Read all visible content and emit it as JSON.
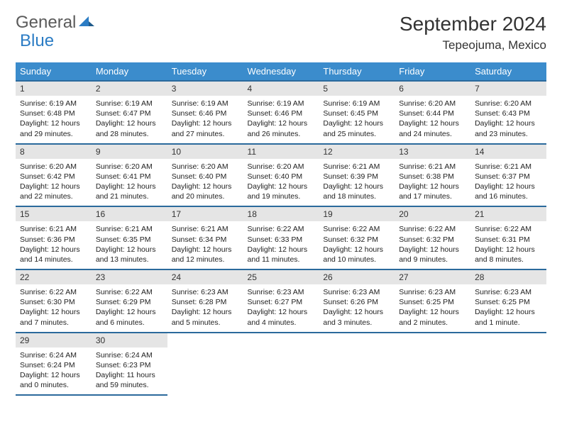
{
  "logo": {
    "text1": "General",
    "text2": "Blue"
  },
  "title": "September 2024",
  "location": "Tepeojuma, Mexico",
  "colors": {
    "header_bg": "#3b8ccc",
    "header_text": "#ffffff",
    "row_border": "#2b6a9c",
    "daynum_bg": "#e5e5e5",
    "logo_gray": "#5a5a5a",
    "logo_blue": "#2b7cc4"
  },
  "day_names": [
    "Sunday",
    "Monday",
    "Tuesday",
    "Wednesday",
    "Thursday",
    "Friday",
    "Saturday"
  ],
  "weeks": [
    [
      {
        "n": "1",
        "sunrise": "6:19 AM",
        "sunset": "6:48 PM",
        "dl1": "12 hours",
        "dl2": "and 29 minutes."
      },
      {
        "n": "2",
        "sunrise": "6:19 AM",
        "sunset": "6:47 PM",
        "dl1": "12 hours",
        "dl2": "and 28 minutes."
      },
      {
        "n": "3",
        "sunrise": "6:19 AM",
        "sunset": "6:46 PM",
        "dl1": "12 hours",
        "dl2": "and 27 minutes."
      },
      {
        "n": "4",
        "sunrise": "6:19 AM",
        "sunset": "6:46 PM",
        "dl1": "12 hours",
        "dl2": "and 26 minutes."
      },
      {
        "n": "5",
        "sunrise": "6:19 AM",
        "sunset": "6:45 PM",
        "dl1": "12 hours",
        "dl2": "and 25 minutes."
      },
      {
        "n": "6",
        "sunrise": "6:20 AM",
        "sunset": "6:44 PM",
        "dl1": "12 hours",
        "dl2": "and 24 minutes."
      },
      {
        "n": "7",
        "sunrise": "6:20 AM",
        "sunset": "6:43 PM",
        "dl1": "12 hours",
        "dl2": "and 23 minutes."
      }
    ],
    [
      {
        "n": "8",
        "sunrise": "6:20 AM",
        "sunset": "6:42 PM",
        "dl1": "12 hours",
        "dl2": "and 22 minutes."
      },
      {
        "n": "9",
        "sunrise": "6:20 AM",
        "sunset": "6:41 PM",
        "dl1": "12 hours",
        "dl2": "and 21 minutes."
      },
      {
        "n": "10",
        "sunrise": "6:20 AM",
        "sunset": "6:40 PM",
        "dl1": "12 hours",
        "dl2": "and 20 minutes."
      },
      {
        "n": "11",
        "sunrise": "6:20 AM",
        "sunset": "6:40 PM",
        "dl1": "12 hours",
        "dl2": "and 19 minutes."
      },
      {
        "n": "12",
        "sunrise": "6:21 AM",
        "sunset": "6:39 PM",
        "dl1": "12 hours",
        "dl2": "and 18 minutes."
      },
      {
        "n": "13",
        "sunrise": "6:21 AM",
        "sunset": "6:38 PM",
        "dl1": "12 hours",
        "dl2": "and 17 minutes."
      },
      {
        "n": "14",
        "sunrise": "6:21 AM",
        "sunset": "6:37 PM",
        "dl1": "12 hours",
        "dl2": "and 16 minutes."
      }
    ],
    [
      {
        "n": "15",
        "sunrise": "6:21 AM",
        "sunset": "6:36 PM",
        "dl1": "12 hours",
        "dl2": "and 14 minutes."
      },
      {
        "n": "16",
        "sunrise": "6:21 AM",
        "sunset": "6:35 PM",
        "dl1": "12 hours",
        "dl2": "and 13 minutes."
      },
      {
        "n": "17",
        "sunrise": "6:21 AM",
        "sunset": "6:34 PM",
        "dl1": "12 hours",
        "dl2": "and 12 minutes."
      },
      {
        "n": "18",
        "sunrise": "6:22 AM",
        "sunset": "6:33 PM",
        "dl1": "12 hours",
        "dl2": "and 11 minutes."
      },
      {
        "n": "19",
        "sunrise": "6:22 AM",
        "sunset": "6:32 PM",
        "dl1": "12 hours",
        "dl2": "and 10 minutes."
      },
      {
        "n": "20",
        "sunrise": "6:22 AM",
        "sunset": "6:32 PM",
        "dl1": "12 hours",
        "dl2": "and 9 minutes."
      },
      {
        "n": "21",
        "sunrise": "6:22 AM",
        "sunset": "6:31 PM",
        "dl1": "12 hours",
        "dl2": "and 8 minutes."
      }
    ],
    [
      {
        "n": "22",
        "sunrise": "6:22 AM",
        "sunset": "6:30 PM",
        "dl1": "12 hours",
        "dl2": "and 7 minutes."
      },
      {
        "n": "23",
        "sunrise": "6:22 AM",
        "sunset": "6:29 PM",
        "dl1": "12 hours",
        "dl2": "and 6 minutes."
      },
      {
        "n": "24",
        "sunrise": "6:23 AM",
        "sunset": "6:28 PM",
        "dl1": "12 hours",
        "dl2": "and 5 minutes."
      },
      {
        "n": "25",
        "sunrise": "6:23 AM",
        "sunset": "6:27 PM",
        "dl1": "12 hours",
        "dl2": "and 4 minutes."
      },
      {
        "n": "26",
        "sunrise": "6:23 AM",
        "sunset": "6:26 PM",
        "dl1": "12 hours",
        "dl2": "and 3 minutes."
      },
      {
        "n": "27",
        "sunrise": "6:23 AM",
        "sunset": "6:25 PM",
        "dl1": "12 hours",
        "dl2": "and 2 minutes."
      },
      {
        "n": "28",
        "sunrise": "6:23 AM",
        "sunset": "6:25 PM",
        "dl1": "12 hours",
        "dl2": "and 1 minute."
      }
    ],
    [
      {
        "n": "29",
        "sunrise": "6:24 AM",
        "sunset": "6:24 PM",
        "dl1": "12 hours",
        "dl2": "and 0 minutes."
      },
      {
        "n": "30",
        "sunrise": "6:24 AM",
        "sunset": "6:23 PM",
        "dl1": "11 hours",
        "dl2": "and 59 minutes."
      },
      null,
      null,
      null,
      null,
      null
    ]
  ],
  "labels": {
    "sunrise": "Sunrise:",
    "sunset": "Sunset:",
    "daylight": "Daylight:"
  }
}
